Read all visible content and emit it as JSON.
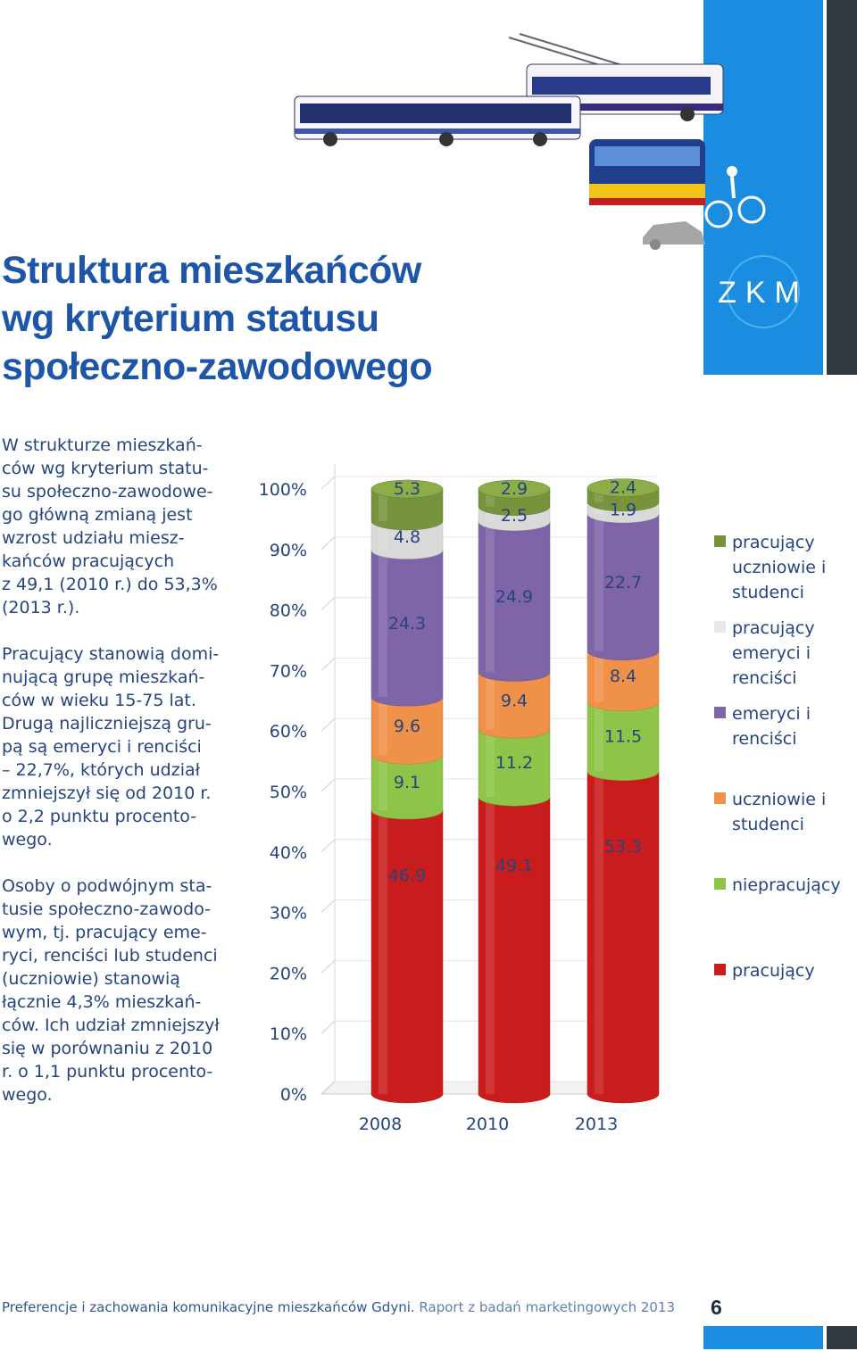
{
  "header": {
    "title_lines": [
      "Struktura mieszkańców",
      "wg kryterium statusu",
      "społeczno-zawodowego"
    ],
    "logo_text": "ZKM"
  },
  "intro": {
    "paragraphs": [
      [
        "W strukturze mieszkań-",
        "ców wg kryterium statu-",
        "su społeczno-zawodowe-",
        "go główną zmianą jest",
        "wzrost udziału miesz-",
        "kańców pracujących",
        "z 49,1 (2010 r.) do 53,3%",
        "(2013 r.)."
      ],
      [
        "Pracujący stanowią domi-",
        "nującą grupę mieszkań-",
        "ców w wieku 15-75 lat.",
        "Drugą najliczniejszą gru-",
        "pą są emeryci i renciści",
        "– 22,7%, których udział",
        "zmniejszył się od 2010 r.",
        "o 2,2 punktu procento-",
        "wego."
      ],
      [
        "Osoby o podwójnym sta-",
        "tusie społeczno-zawodo-",
        "wym, tj. pracujący eme-",
        "ryci, renciści lub studenci",
        "(uczniowie) stanowią",
        "łącznie 4,3% mieszkań-",
        "ców. Ich udział zmniejszył",
        "się w porównaniu z 2010",
        "r. o 1,1 punktu procento-",
        "wego."
      ]
    ]
  },
  "chart_data": {
    "type": "bar",
    "stacked": true,
    "style": "3d-cylinder",
    "categories": [
      "2008",
      "2010",
      "2013"
    ],
    "ylim": [
      0,
      100
    ],
    "y_ticks": [
      "0%",
      "10%",
      "20%",
      "30%",
      "40%",
      "50%",
      "60%",
      "70%",
      "80%",
      "90%",
      "100%"
    ],
    "series": [
      {
        "name": "pracujący",
        "color": "#c91c1c",
        "values": [
          46.9,
          49.1,
          53.3
        ]
      },
      {
        "name": "niepracujący",
        "color": "#8ec447",
        "values": [
          9.1,
          11.2,
          11.5
        ]
      },
      {
        "name": "uczniowie i studenci",
        "color": "#f0914a",
        "values": [
          9.6,
          9.4,
          8.4
        ]
      },
      {
        "name": "emeryci i renciści",
        "color": "#8064a8",
        "values": [
          24.3,
          24.9,
          22.7
        ]
      },
      {
        "name": "pracujący emeryci i renciści",
        "color": "#d9d9d9",
        "values": [
          4.8,
          2.5,
          1.9
        ]
      },
      {
        "name": "pracujący uczniowie i studenci",
        "color": "#77933c",
        "values": [
          5.3,
          2.9,
          2.4
        ]
      }
    ],
    "legend": [
      {
        "lines": [
          "pracujący",
          "uczniowie i",
          "studenci"
        ],
        "color": "#77933c"
      },
      {
        "lines": [
          "pracujący",
          "emeryci i",
          "renciści"
        ],
        "color": "#e8e8e8"
      },
      {
        "lines": [
          "emeryci i",
          "renciści"
        ],
        "color": "#8064a8"
      },
      {
        "lines": [
          "uczniowie i",
          "studenci"
        ],
        "color": "#f0914a"
      },
      {
        "lines": [
          "niepracujący"
        ],
        "color": "#8ec447"
      },
      {
        "lines": [
          "pracujący"
        ],
        "color": "#c91c1c"
      }
    ],
    "legend_position": "right"
  },
  "footer": {
    "report_prefix": "Preferencje i zachowania komunikacyjne mieszkańców Gdyni.",
    "report_suffix": " Raport z badań marketingowych 2013",
    "page_number": "6"
  },
  "colors": {
    "brand_blue": "#1a8de0",
    "title_blue": "#1d56a8",
    "dark": "#343b40"
  }
}
